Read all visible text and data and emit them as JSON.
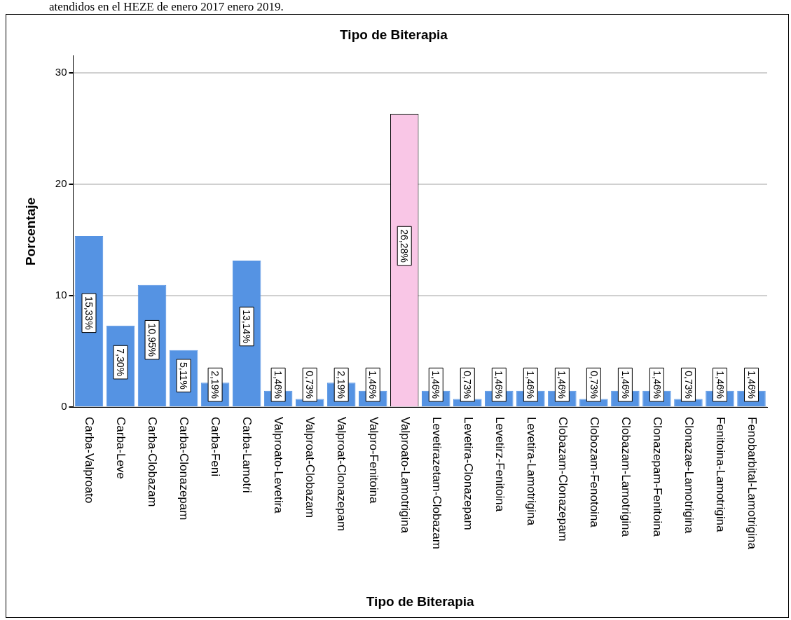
{
  "chart_data": {
    "type": "bar",
    "title": "Tipo de Biterapia",
    "xlabel": "Tipo de Biterapia",
    "ylabel": "Porcentaje",
    "annotations": [
      "atendidos en el HEZE de enero 2017 enero 2019."
    ],
    "categories": [
      "Carba-Valproato",
      "Carba-Leve",
      "Carba-Clobazam",
      "Carba-Clonazepam",
      "Carba-Feni",
      "Carba-Lamotri",
      "Valproato-Levetira",
      "Valproat-Clobazam",
      "Valproat-Clonazepam",
      "Valpro-Fenitoina",
      "Valproato-Lamotrigina",
      "Levetirazetam-Clobazam",
      "Levetira-Clonazepam",
      "Levetirz-Fenitoina",
      "Levetira-Lamotrigina",
      "Clobazam-Clonazepam",
      "Clobozam-Fenotoina",
      "Clobazam-Lamotrigina",
      "Clonazepam-Fenitoina",
      "Clonazae-Lamotrigina",
      "Fenitoina-Lamotrigina",
      "Fenobarbital-Lamotrigina"
    ],
    "values": [
      15.33,
      7.3,
      10.95,
      5.11,
      2.19,
      13.14,
      1.46,
      0.73,
      2.19,
      1.46,
      26.28,
      1.46,
      0.73,
      1.46,
      1.46,
      1.46,
      0.73,
      1.46,
      1.46,
      0.73,
      1.46,
      1.46
    ],
    "value_labels": [
      "15,33%",
      "7,30%",
      "10,95%",
      "5,11%",
      "2,19%",
      "13,14%",
      "1,46%",
      "0,73%",
      "2,19%",
      "1,46%",
      "26,28%",
      "1,46%",
      "0,73%",
      "1,46%",
      "1,46%",
      "1,46%",
      "0,73%",
      "1,46%",
      "1,46%",
      "0,73%",
      "1,46%",
      "1,46%"
    ],
    "colors": [
      "#5593e3",
      "#5593e3",
      "#5593e3",
      "#5593e3",
      "#5593e3",
      "#5593e3",
      "#5593e3",
      "#5593e3",
      "#5593e3",
      "#5593e3",
      "#f9c6e6",
      "#5593e3",
      "#5593e3",
      "#5593e3",
      "#5593e3",
      "#5593e3",
      "#5593e3",
      "#5593e3",
      "#5593e3",
      "#5593e3",
      "#5593e3",
      "#5593e3"
    ],
    "ylim": [
      0,
      31.5
    ],
    "yticks": [
      0,
      10,
      20,
      30
    ],
    "grid": "y",
    "legend": false
  }
}
